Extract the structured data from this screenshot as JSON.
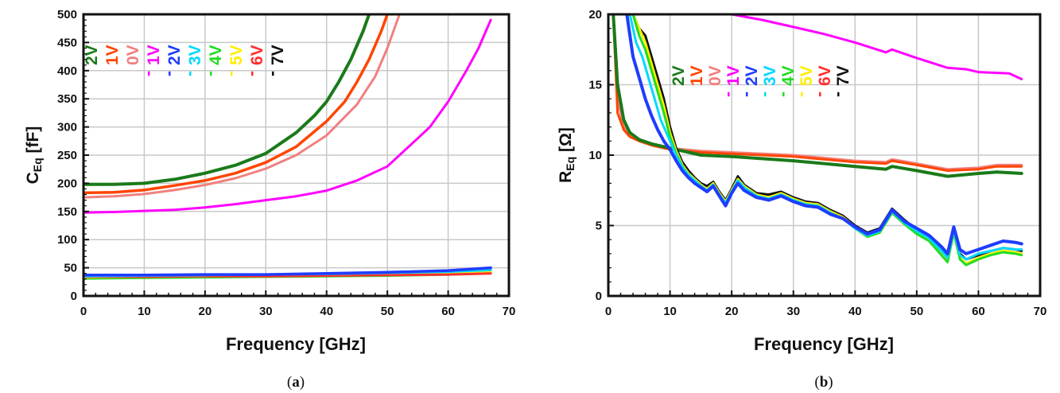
{
  "chart_data": [
    {
      "type": "line",
      "panel": "(a)",
      "panel_letter": "a",
      "xlabel": "Frequency [GHz]",
      "ylabel": "C",
      "ylabel_sub": "Eq",
      "ylabel_unit": " [fF]",
      "xlim": [
        0,
        70
      ],
      "ylim": [
        0,
        500
      ],
      "xticks": [
        0,
        10,
        20,
        30,
        40,
        50,
        60,
        70
      ],
      "yticks": [
        0,
        50,
        100,
        150,
        200,
        250,
        300,
        350,
        400,
        450,
        500
      ],
      "grid": true,
      "legend_placement": "top-left, rotated labels",
      "legend": [
        {
          "label": "2V",
          "color": "#1a7a1a",
          "sign": ""
        },
        {
          "label": "1V",
          "color": "#ff4500",
          "sign": ""
        },
        {
          "label": "0V",
          "color": "#f08080",
          "sign": ""
        },
        {
          "label": "1V",
          "color": "#ff00ff",
          "sign": "-"
        },
        {
          "label": "2V",
          "color": "#1f3cff",
          "sign": "-"
        },
        {
          "label": "3V",
          "color": "#00d8ff",
          "sign": "-"
        },
        {
          "label": "4V",
          "color": "#22dd22",
          "sign": "-"
        },
        {
          "label": "5V",
          "color": "#ffee00",
          "sign": "-"
        },
        {
          "label": "6V",
          "color": "#ff3030",
          "sign": "-"
        },
        {
          "label": "7V",
          "color": "#111111",
          "sign": "-"
        }
      ],
      "series": [
        {
          "color": "#1a7a1a",
          "width": 4,
          "x": [
            0,
            5,
            10,
            15,
            20,
            25,
            30,
            35,
            38,
            40,
            42,
            44,
            46,
            47
          ],
          "y": [
            198,
            198,
            200,
            207,
            218,
            232,
            253,
            290,
            320,
            345,
            380,
            420,
            470,
            500
          ]
        },
        {
          "color": "#ff4500",
          "width": 3.5,
          "x": [
            0,
            5,
            10,
            15,
            20,
            25,
            30,
            35,
            40,
            43,
            45,
            47,
            49,
            50
          ],
          "y": [
            183,
            184,
            188,
            196,
            205,
            218,
            237,
            265,
            310,
            345,
            380,
            420,
            470,
            500
          ]
        },
        {
          "color": "#f08080",
          "width": 3,
          "x": [
            0,
            5,
            10,
            15,
            20,
            25,
            30,
            35,
            40,
            45,
            48,
            50,
            52
          ],
          "y": [
            175,
            177,
            181,
            188,
            197,
            209,
            226,
            250,
            285,
            340,
            390,
            440,
            500
          ]
        },
        {
          "color": "#ff00ff",
          "width": 3,
          "x": [
            0,
            5,
            10,
            15,
            20,
            25,
            30,
            35,
            40,
            45,
            50,
            55,
            57,
            60,
            63,
            65,
            67
          ],
          "y": [
            148,
            149,
            151,
            153,
            157,
            163,
            170,
            177,
            187,
            205,
            230,
            280,
            300,
            345,
            400,
            440,
            490
          ]
        },
        {
          "color": "#22dd22",
          "width": 3,
          "x": [
            0,
            10,
            20,
            30,
            40,
            50,
            60,
            67
          ],
          "y": [
            31,
            32,
            33,
            34,
            35,
            36,
            38,
            41
          ]
        },
        {
          "color": "#ffee00",
          "width": 3,
          "x": [
            0,
            10,
            20,
            30,
            40,
            50,
            60,
            67
          ],
          "y": [
            33,
            34,
            35,
            36,
            37,
            38,
            40,
            43
          ]
        },
        {
          "color": "#ff3030",
          "width": 3,
          "x": [
            0,
            10,
            20,
            30,
            40,
            50,
            60,
            67
          ],
          "y": [
            34,
            34,
            35,
            35,
            36,
            37,
            38,
            40
          ]
        },
        {
          "color": "#00d8ff",
          "width": 3,
          "x": [
            0,
            10,
            20,
            30,
            40,
            50,
            60,
            67
          ],
          "y": [
            35,
            36,
            37,
            38,
            39,
            41,
            43,
            46
          ]
        },
        {
          "color": "#1f3cff",
          "width": 3.5,
          "x": [
            0,
            10,
            20,
            30,
            40,
            50,
            60,
            67
          ],
          "y": [
            37,
            37,
            38,
            38,
            40,
            42,
            45,
            50
          ]
        }
      ]
    },
    {
      "type": "line",
      "panel": "(b)",
      "panel_letter": "b",
      "xlabel": "Frequency [GHz]",
      "ylabel": "R",
      "ylabel_sub": "Eq",
      "ylabel_unit": " [Ω]",
      "xlim": [
        0,
        70
      ],
      "ylim": [
        0,
        20
      ],
      "xticks": [
        0,
        10,
        20,
        30,
        40,
        50,
        60,
        70
      ],
      "yticks": [
        0,
        5,
        10,
        15,
        20
      ],
      "grid": true,
      "legend_placement": "upper-center, rotated labels",
      "legend": [
        {
          "label": "2V",
          "color": "#1a7a1a",
          "sign": ""
        },
        {
          "label": "1V",
          "color": "#ff4500",
          "sign": ""
        },
        {
          "label": "0V",
          "color": "#f08080",
          "sign": ""
        },
        {
          "label": "1V",
          "color": "#ff00ff",
          "sign": "-"
        },
        {
          "label": "2V",
          "color": "#1f3cff",
          "sign": "-"
        },
        {
          "label": "3V",
          "color": "#00d8ff",
          "sign": "-"
        },
        {
          "label": "4V",
          "color": "#22dd22",
          "sign": "-"
        },
        {
          "label": "5V",
          "color": "#ffee00",
          "sign": "-"
        },
        {
          "label": "6V",
          "color": "#ff3030",
          "sign": "-"
        },
        {
          "label": "7V",
          "color": "#111111",
          "sign": "-"
        }
      ],
      "series": [
        {
          "color": "#ff00ff",
          "width": 3,
          "x": [
            20,
            25,
            30,
            35,
            40,
            45,
            46,
            50,
            55,
            58,
            60,
            65,
            67
          ],
          "y": [
            20,
            19.6,
            19.1,
            18.6,
            18.0,
            17.3,
            17.5,
            16.9,
            16.2,
            16.1,
            15.9,
            15.8,
            15.4
          ]
        },
        {
          "color": "#f08080",
          "width": 3,
          "x": [
            0.8,
            1.5,
            2.5,
            3.5,
            5,
            7,
            10,
            15,
            20,
            30,
            40,
            45,
            46,
            50,
            55,
            60,
            63,
            67
          ],
          "y": [
            20,
            14,
            12,
            11.5,
            11.1,
            10.8,
            10.5,
            10.3,
            10.2,
            10.0,
            9.6,
            9.5,
            9.7,
            9.4,
            9.0,
            9.1,
            9.3,
            9.3
          ]
        },
        {
          "color": "#ff4500",
          "width": 3,
          "x": [
            0.8,
            1.5,
            2.5,
            3.5,
            5,
            7,
            10,
            15,
            20,
            30,
            40,
            45,
            46,
            50,
            55,
            60,
            63,
            67
          ],
          "y": [
            20,
            13,
            11.8,
            11.3,
            11.0,
            10.7,
            10.4,
            10.2,
            10.1,
            9.9,
            9.5,
            9.4,
            9.6,
            9.3,
            8.9,
            9.0,
            9.2,
            9.2
          ]
        },
        {
          "color": "#1a7a1a",
          "width": 4,
          "x": [
            0.8,
            1.5,
            2.5,
            3.5,
            5,
            7,
            10,
            15,
            20,
            30,
            40,
            45,
            46,
            50,
            55,
            60,
            63,
            67
          ],
          "y": [
            20,
            15,
            12.5,
            11.6,
            11.1,
            10.8,
            10.5,
            10.0,
            9.9,
            9.6,
            9.2,
            9.0,
            9.2,
            8.9,
            8.5,
            8.7,
            8.8,
            8.7
          ]
        },
        {
          "color": "#111111",
          "width": 3,
          "x": [
            4,
            5,
            6,
            7,
            8,
            9,
            10,
            11,
            12,
            13,
            14,
            15,
            16,
            17,
            18,
            19,
            20,
            21,
            22,
            24,
            26,
            28,
            30,
            32,
            34,
            36,
            38,
            40,
            42,
            44,
            46,
            48,
            50,
            52,
            54,
            55,
            56,
            57,
            58,
            60,
            62,
            64,
            66,
            67
          ],
          "y": [
            20,
            19,
            18.5,
            17,
            15.5,
            14,
            12,
            10.5,
            9.5,
            8.9,
            8.4,
            8.0,
            7.8,
            8.1,
            7.4,
            6.8,
            7.6,
            8.5,
            7.9,
            7.3,
            7.2,
            7.4,
            7.0,
            6.7,
            6.6,
            6.1,
            5.7,
            5.0,
            4.5,
            4.8,
            6.2,
            5.4,
            4.7,
            4.2,
            3.2,
            2.8,
            4.8,
            3.0,
            2.6,
            2.9,
            3.2,
            3.4,
            3.3,
            3.2
          ]
        },
        {
          "color": "#ffee00",
          "width": 3,
          "x": [
            4,
            5,
            6,
            7,
            8,
            9,
            10,
            11,
            12,
            13,
            14,
            15,
            16,
            17,
            18,
            19,
            20,
            21,
            22,
            24,
            26,
            28,
            30,
            32,
            34,
            36,
            38,
            40,
            42,
            44,
            46,
            48,
            50,
            52,
            54,
            55,
            56,
            57,
            58,
            60,
            62,
            64,
            66,
            67
          ],
          "y": [
            20,
            19,
            18.0,
            16.5,
            15.0,
            13.5,
            11.6,
            10.3,
            9.3,
            8.7,
            8.3,
            7.9,
            7.6,
            8.0,
            7.3,
            6.7,
            7.5,
            8.3,
            7.8,
            7.2,
            7.0,
            7.3,
            6.9,
            6.6,
            6.5,
            6.0,
            5.6,
            4.9,
            4.3,
            4.6,
            6.0,
            5.2,
            4.5,
            4.0,
            3.0,
            2.5,
            4.6,
            2.7,
            2.3,
            2.7,
            3.0,
            3.2,
            3.1,
            3.0
          ]
        },
        {
          "color": "#22dd22",
          "width": 3,
          "x": [
            4,
            5,
            6,
            7,
            8,
            9,
            10,
            11,
            12,
            13,
            14,
            15,
            16,
            17,
            18,
            19,
            20,
            21,
            22,
            24,
            26,
            28,
            30,
            32,
            34,
            36,
            38,
            40,
            42,
            44,
            46,
            48,
            50,
            52,
            54,
            55,
            56,
            57,
            58,
            60,
            62,
            64,
            66,
            67
          ],
          "y": [
            20,
            18.5,
            17.5,
            16,
            14.5,
            13,
            11.3,
            10.1,
            9.2,
            8.6,
            8.2,
            7.8,
            7.5,
            7.9,
            7.2,
            6.6,
            7.4,
            8.2,
            7.7,
            7.1,
            6.9,
            7.2,
            6.8,
            6.5,
            6.4,
            5.9,
            5.5,
            4.8,
            4.2,
            4.5,
            5.9,
            5.1,
            4.4,
            3.9,
            2.9,
            2.4,
            4.5,
            2.6,
            2.2,
            2.6,
            2.9,
            3.1,
            3.0,
            2.9
          ]
        },
        {
          "color": "#00d8ff",
          "width": 3,
          "x": [
            3.5,
            4.5,
            5.5,
            6.5,
            7.5,
            8.5,
            10,
            11,
            12,
            13,
            14,
            15,
            16,
            17,
            18,
            19,
            20,
            21,
            22,
            24,
            26,
            28,
            30,
            32,
            34,
            36,
            38,
            40,
            42,
            44,
            46,
            48,
            50,
            52,
            54,
            55,
            56,
            57,
            58,
            60,
            62,
            64,
            66,
            67
          ],
          "y": [
            20,
            18,
            17,
            15.5,
            14,
            12.5,
            11.0,
            10.0,
            9.1,
            8.6,
            8.2,
            7.8,
            7.5,
            7.9,
            7.2,
            6.6,
            7.4,
            8.2,
            7.7,
            7.1,
            6.9,
            7.2,
            6.8,
            6.5,
            6.4,
            5.9,
            5.5,
            4.8,
            4.3,
            4.6,
            6.0,
            5.2,
            4.6,
            4.1,
            3.2,
            2.7,
            4.7,
            2.9,
            2.6,
            3.0,
            3.2,
            3.4,
            3.3,
            3.3
          ]
        },
        {
          "color": "#1f3cff",
          "width": 4,
          "x": [
            3,
            4,
            5,
            6,
            7,
            8,
            9,
            10,
            11,
            12,
            13,
            14,
            15,
            16,
            17,
            18,
            19,
            20,
            21,
            22,
            24,
            26,
            28,
            30,
            32,
            34,
            36,
            38,
            40,
            42,
            44,
            46,
            48,
            50,
            52,
            54,
            55,
            56,
            57,
            58,
            60,
            62,
            64,
            66,
            67
          ],
          "y": [
            20,
            17,
            15.5,
            14,
            12.8,
            11.8,
            11.0,
            10.4,
            9.6,
            8.9,
            8.4,
            8.0,
            7.7,
            7.4,
            7.8,
            7.1,
            6.4,
            7.3,
            8.0,
            7.5,
            7.0,
            6.8,
            7.1,
            6.7,
            6.4,
            6.3,
            5.8,
            5.5,
            4.9,
            4.4,
            4.7,
            6.1,
            5.3,
            4.8,
            4.3,
            3.5,
            3.0,
            4.9,
            3.3,
            3.0,
            3.3,
            3.6,
            3.9,
            3.8,
            3.7
          ]
        }
      ]
    }
  ]
}
